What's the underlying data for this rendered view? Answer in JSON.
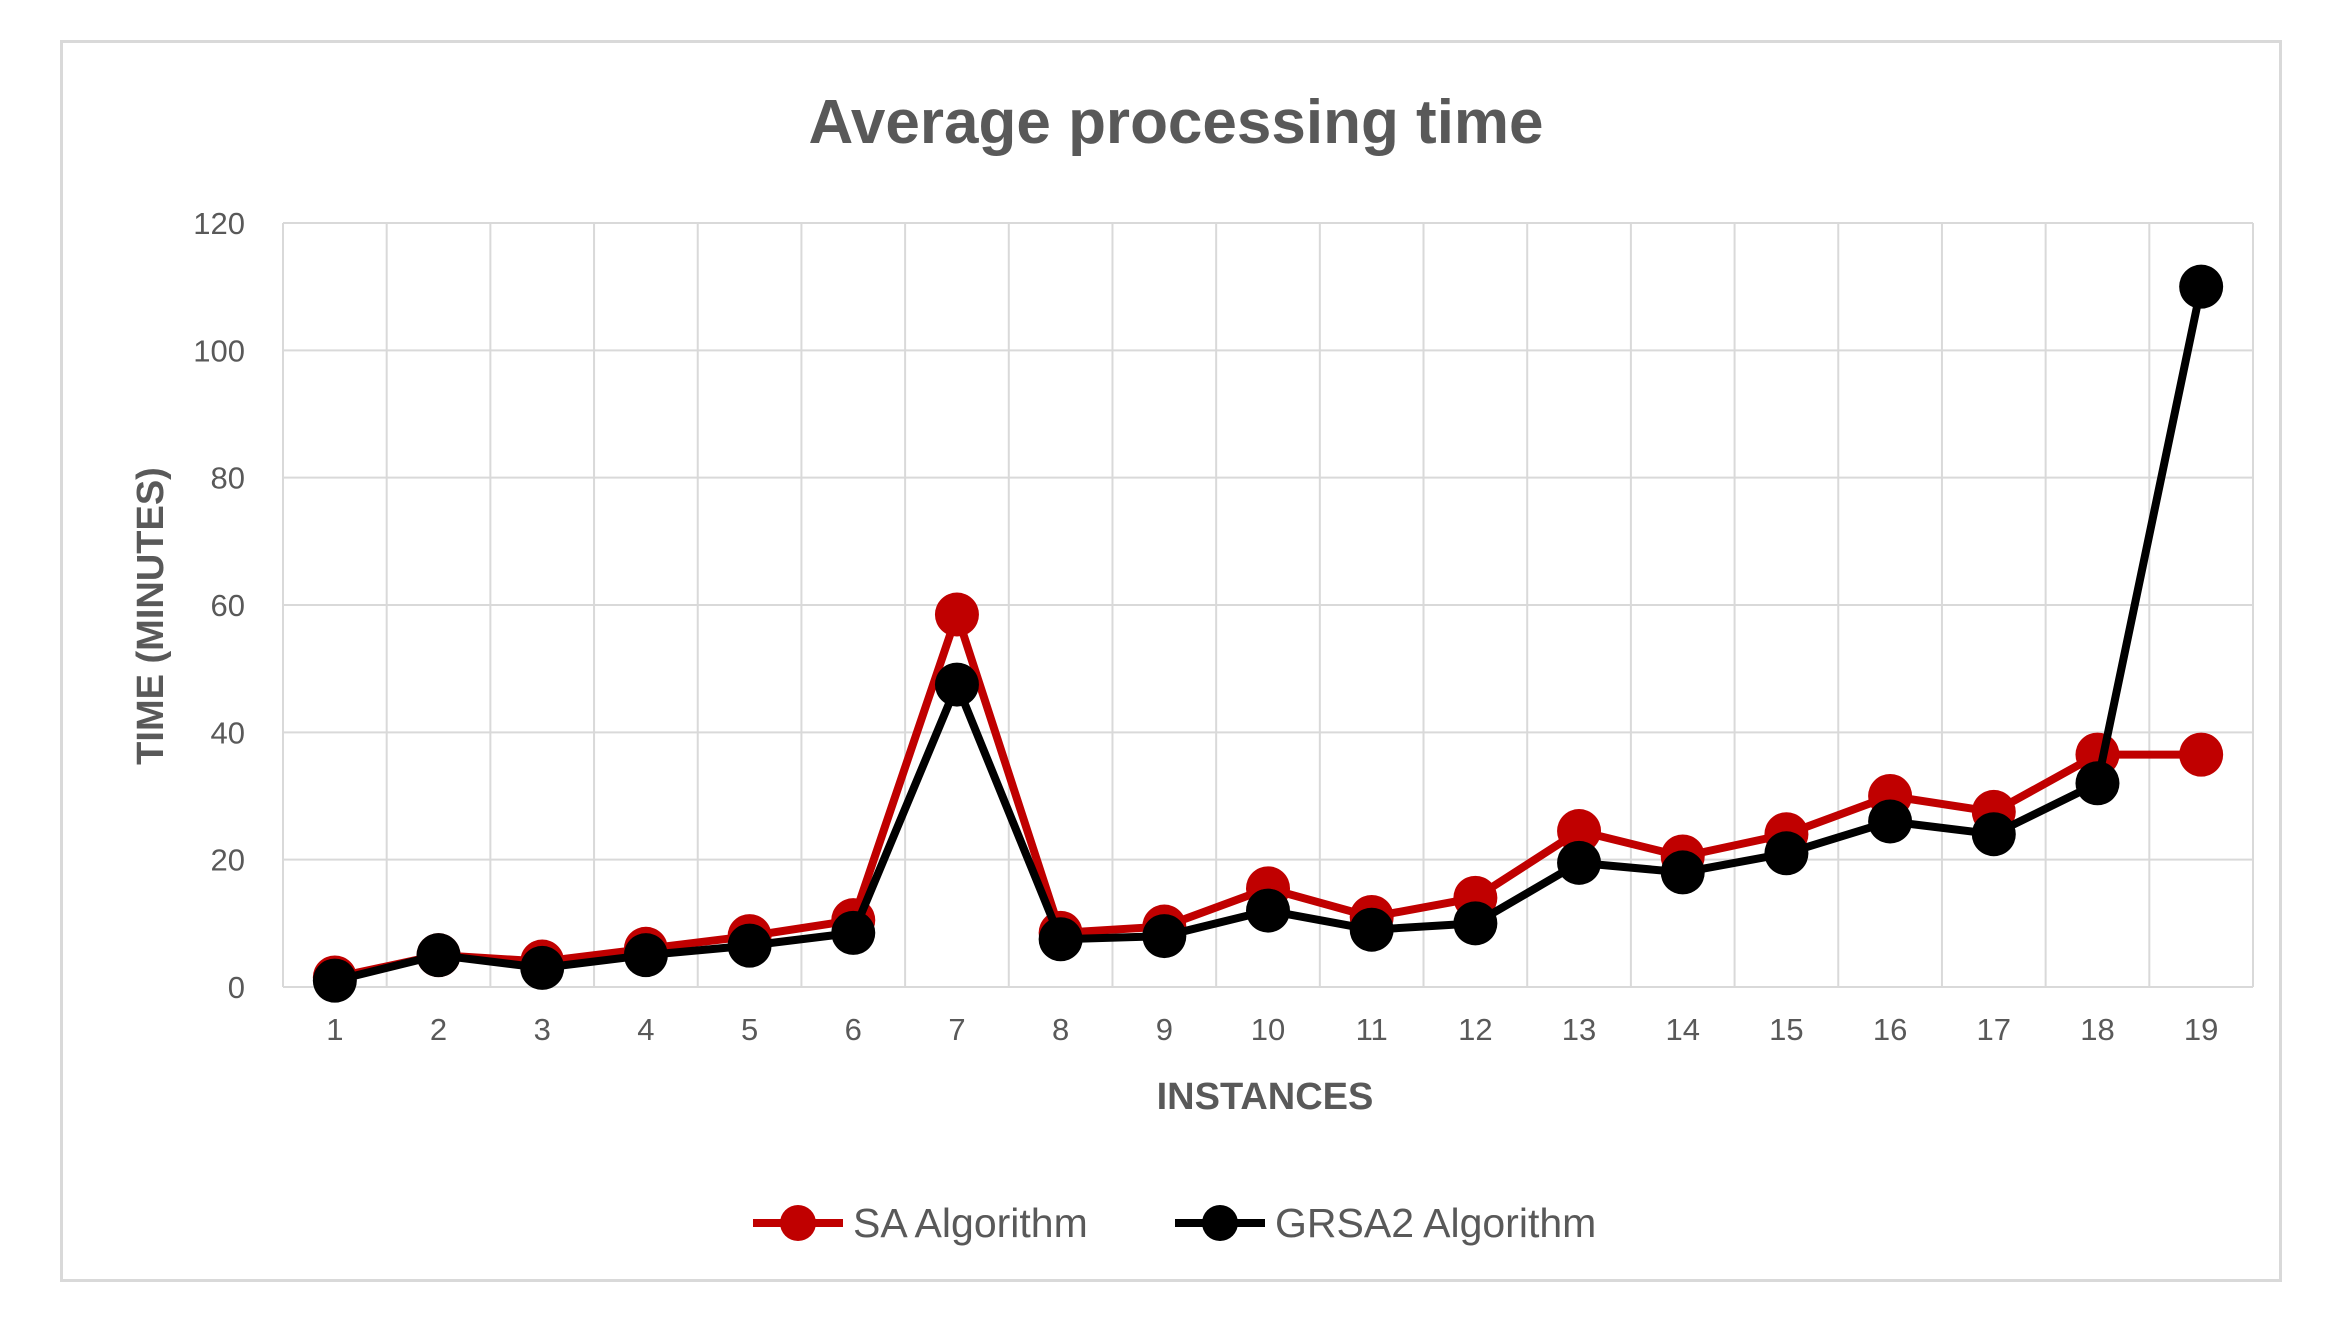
{
  "chart_data": {
    "type": "line",
    "title": "Average processing time",
    "xlabel": "INSTANCES",
    "ylabel": "TIME (MINUTES)",
    "ylim": [
      0,
      120
    ],
    "y_ticks": [
      "0",
      "20",
      "40",
      "60",
      "80",
      "100",
      "120"
    ],
    "categories": [
      "1",
      "2",
      "3",
      "4",
      "5",
      "6",
      "7",
      "8",
      "9",
      "10",
      "11",
      "12",
      "13",
      "14",
      "15",
      "16",
      "17",
      "18",
      "19"
    ],
    "grid": true,
    "legend_position": "bottom",
    "series": [
      {
        "name": "SA Algorithm",
        "color": "#c00000",
        "values": [
          1.5,
          5,
          4,
          6,
          8,
          10.5,
          58.5,
          8.5,
          9.5,
          15.5,
          11,
          14,
          24.5,
          20.5,
          24,
          30,
          27.5,
          36.5,
          36.5
        ]
      },
      {
        "name": "GRSA2 Algorithm",
        "color": "#000000",
        "values": [
          1,
          5,
          3,
          5,
          6.5,
          8.5,
          47.5,
          7.5,
          8,
          12,
          9,
          10,
          19.5,
          18,
          21,
          26,
          24,
          32,
          110
        ]
      }
    ]
  }
}
